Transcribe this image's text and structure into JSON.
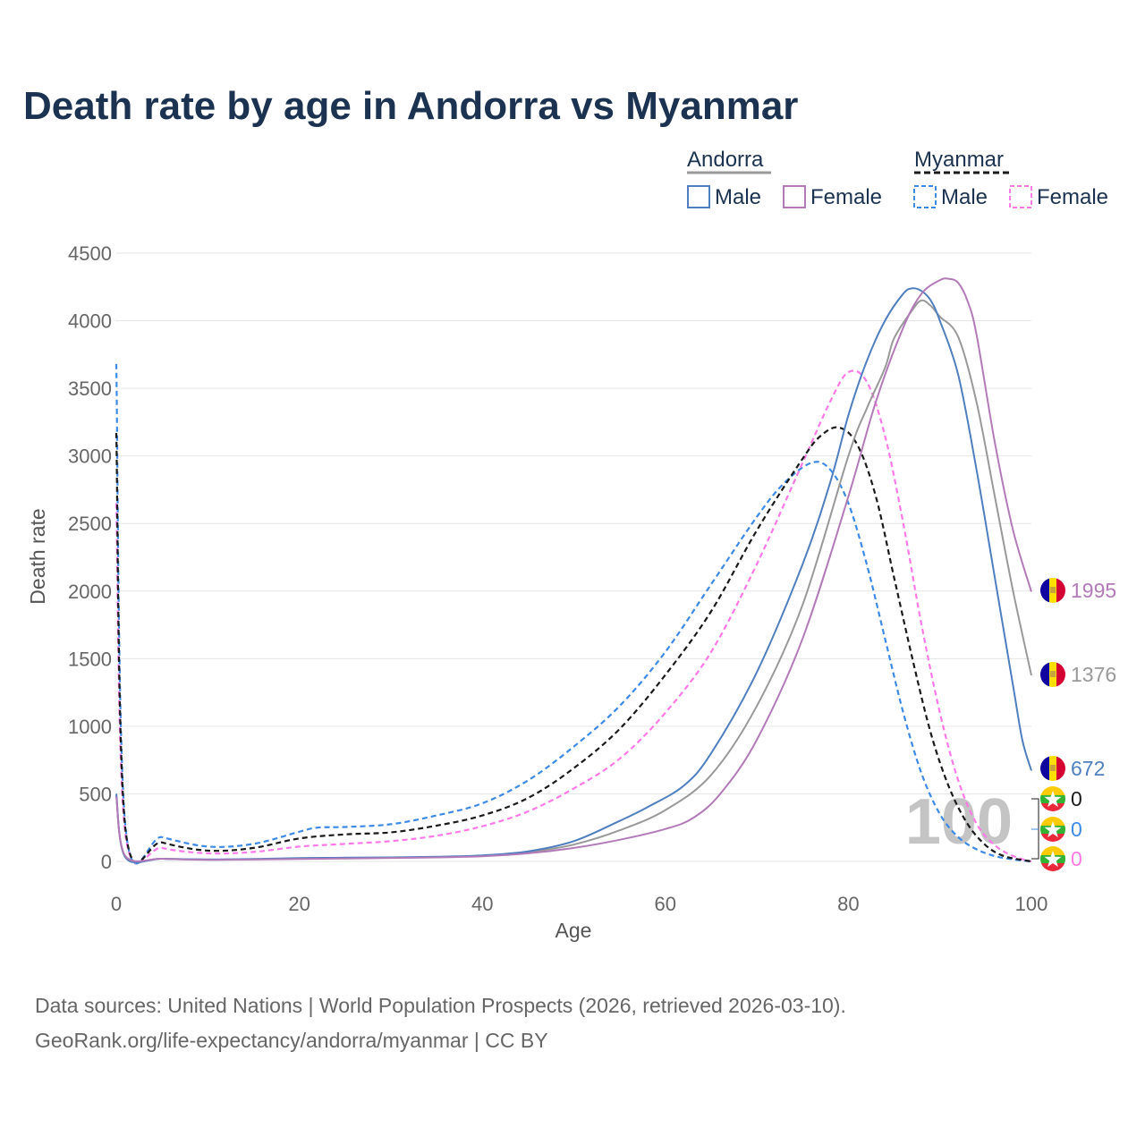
{
  "title": "Death rate by age in Andorra vs Myanmar",
  "legend": {
    "groups": [
      {
        "name": "Andorra",
        "items": [
          "Male",
          "Female"
        ]
      },
      {
        "name": "Myanmar",
        "items": [
          "Male",
          "Female"
        ]
      }
    ]
  },
  "source_line1": "Data sources: United Nations | World Population Prospects (2026, retrieved 2026-03-10).",
  "source_line2": "GeoRank.org/life-expectancy/andorra/myanmar | CC BY",
  "watermark": "100",
  "colors": {
    "andorra_male": "#4f7fbf",
    "andorra_female": "#b27bb8",
    "andorra_total": "#999999",
    "myanmar_male": "#3d8ae6",
    "myanmar_female": "#ff7ae8",
    "myanmar_total": "#1a1a1a",
    "grid": "#e6e6e6",
    "title": "#1b3350"
  },
  "end_labels": [
    {
      "text": "1995",
      "color": "#b27bb8",
      "flag": "andorra"
    },
    {
      "text": "1376",
      "color": "#999999",
      "flag": "andorra"
    },
    {
      "text": "672",
      "color": "#4f7fbf",
      "flag": "andorra"
    },
    {
      "text": "0",
      "color": "#1a1a1a",
      "flag": "myanmar"
    },
    {
      "text": "0",
      "color": "#3d8ae6",
      "flag": "myanmar"
    },
    {
      "text": "0",
      "color": "#ff7ae8",
      "flag": "myanmar"
    }
  ],
  "chart_data": {
    "type": "line",
    "title": "Death rate by age in Andorra vs Myanmar",
    "xlabel": "Age",
    "ylabel": "Death rate",
    "xlim": [
      0,
      100
    ],
    "ylim": [
      0,
      4500
    ],
    "xticks": [
      0,
      20,
      40,
      60,
      80,
      100
    ],
    "yticks": [
      0,
      500,
      1000,
      1500,
      2000,
      2500,
      3000,
      3500,
      4000,
      4500
    ],
    "grid": true,
    "series": [
      {
        "name": "Andorra Male",
        "country": "Andorra",
        "color": "#4f7fbf",
        "dash": false,
        "x": [
          0,
          1,
          5,
          10,
          15,
          20,
          25,
          30,
          35,
          40,
          45,
          50,
          55,
          58,
          62,
          65,
          70,
          75,
          78,
          80,
          82,
          84,
          86,
          87,
          88,
          89,
          90,
          92,
          94,
          96,
          98,
          99,
          100
        ],
        "y": [
          500,
          30,
          20,
          15,
          18,
          25,
          28,
          30,
          35,
          45,
          75,
          150,
          300,
          400,
          560,
          800,
          1400,
          2200,
          2800,
          3300,
          3700,
          4000,
          4200,
          4240,
          4220,
          4150,
          4000,
          3600,
          2900,
          2100,
          1300,
          900,
          672
        ]
      },
      {
        "name": "Andorra Female",
        "country": "Andorra",
        "color": "#b27bb8",
        "dash": false,
        "x": [
          0,
          1,
          5,
          10,
          15,
          20,
          25,
          30,
          35,
          40,
          45,
          50,
          55,
          60,
          63,
          66,
          70,
          75,
          80,
          83,
          86,
          88,
          90,
          91,
          92,
          93,
          94,
          96,
          98,
          100
        ],
        "y": [
          480,
          40,
          20,
          12,
          14,
          18,
          22,
          26,
          30,
          38,
          60,
          100,
          160,
          240,
          320,
          500,
          900,
          1650,
          2700,
          3400,
          3950,
          4200,
          4300,
          4310,
          4280,
          4150,
          3900,
          3100,
          2450,
          1995
        ]
      },
      {
        "name": "Andorra Total",
        "country": "Andorra",
        "color": "#999999",
        "dash": false,
        "x": [
          0,
          1,
          5,
          10,
          15,
          20,
          25,
          30,
          35,
          40,
          45,
          50,
          55,
          60,
          65,
          70,
          75,
          80,
          82,
          84,
          85,
          87,
          88,
          89,
          90,
          92,
          94,
          96,
          98,
          100
        ],
        "y": [
          490,
          35,
          20,
          13,
          16,
          22,
          25,
          28,
          33,
          42,
          68,
          125,
          230,
          380,
          640,
          1150,
          1900,
          3000,
          3350,
          3650,
          3870,
          4080,
          4150,
          4110,
          4030,
          3880,
          3400,
          2700,
          2000,
          1376
        ]
      },
      {
        "name": "Myanmar Male",
        "country": "Myanmar",
        "color": "#3d8ae6",
        "dash": true,
        "x": [
          0,
          1,
          5,
          10,
          15,
          20,
          22,
          25,
          30,
          35,
          40,
          45,
          50,
          55,
          60,
          65,
          70,
          73,
          76,
          78,
          80,
          82,
          84,
          86,
          88,
          90,
          92,
          94,
          96,
          98,
          100
        ],
        "y": [
          3680,
          260,
          180,
          110,
          130,
          220,
          250,
          255,
          275,
          340,
          430,
          600,
          850,
          1150,
          1550,
          2050,
          2550,
          2800,
          2950,
          2900,
          2650,
          2200,
          1650,
          1100,
          650,
          350,
          180,
          90,
          40,
          15,
          0
        ]
      },
      {
        "name": "Myanmar Female",
        "country": "Myanmar",
        "color": "#ff7ae8",
        "dash": true,
        "x": [
          0,
          1,
          5,
          10,
          15,
          20,
          25,
          30,
          35,
          40,
          45,
          50,
          55,
          60,
          65,
          70,
          75,
          78,
          80,
          82,
          84,
          86,
          88,
          90,
          92,
          94,
          96,
          98,
          100
        ],
        "y": [
          2650,
          200,
          100,
          60,
          70,
          110,
          130,
          150,
          190,
          260,
          370,
          540,
          760,
          1100,
          1550,
          2200,
          2950,
          3400,
          3620,
          3550,
          3150,
          2500,
          1750,
          1100,
          600,
          280,
          120,
          40,
          0
        ]
      },
      {
        "name": "Myanmar Total",
        "country": "Myanmar",
        "color": "#1a1a1a",
        "dash": true,
        "x": [
          0,
          1,
          5,
          10,
          15,
          20,
          25,
          30,
          35,
          40,
          45,
          50,
          55,
          60,
          65,
          70,
          75,
          77,
          79,
          81,
          83,
          85,
          87,
          89,
          91,
          93,
          95,
          97,
          100
        ],
        "y": [
          3170,
          240,
          140,
          80,
          100,
          170,
          200,
          215,
          265,
          340,
          470,
          690,
          980,
          1380,
          1850,
          2450,
          2980,
          3150,
          3210,
          3080,
          2700,
          2100,
          1500,
          950,
          550,
          280,
          120,
          40,
          0
        ]
      }
    ]
  }
}
